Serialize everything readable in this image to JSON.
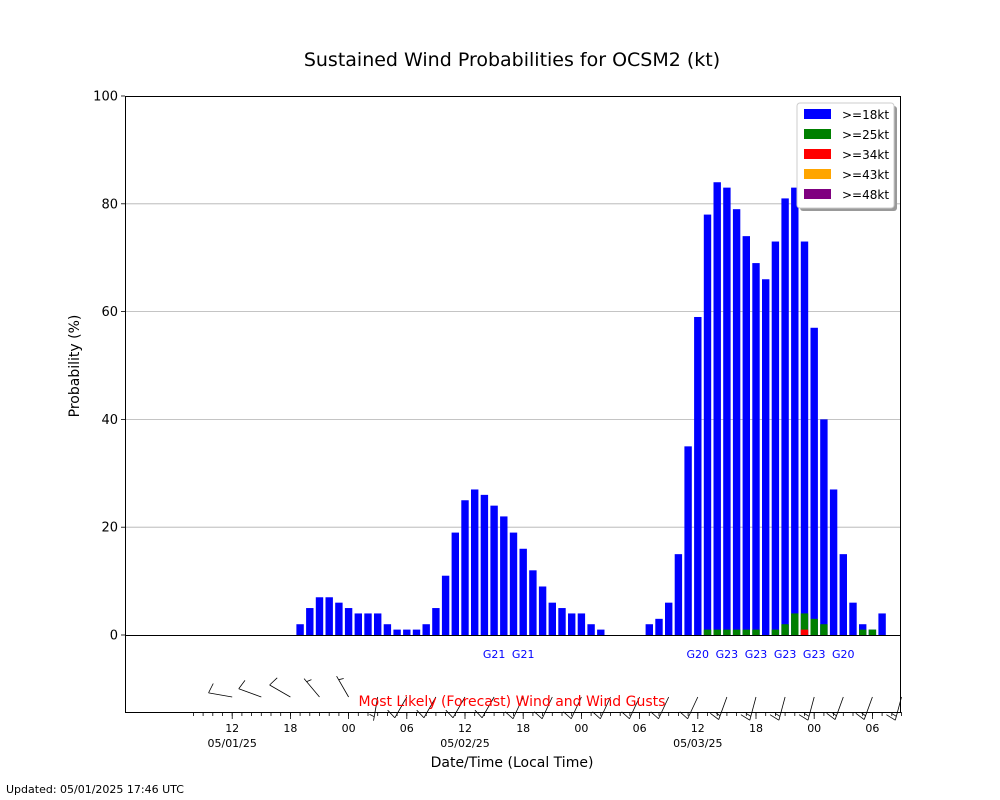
{
  "chart_data": {
    "type": "bar",
    "title": "Sustained Wind Probabilities for OCSM2 (kt)",
    "xlabel": "Date/Time (Local Time)",
    "ylabel": "Probability (%)",
    "ylim": [
      0,
      100
    ],
    "yticks": [
      0,
      20,
      40,
      60,
      80,
      100
    ],
    "grid": "horizontal",
    "legend_position": "top-right",
    "time_step_hours": 1,
    "first_slot": "05/01/25 06:00",
    "x_ticks": [
      {
        "label": "12",
        "date": "05/01/25",
        "slot": 6
      },
      {
        "label": "18",
        "date": "",
        "slot": 12
      },
      {
        "label": "00",
        "date": "",
        "slot": 18
      },
      {
        "label": "06",
        "date": "",
        "slot": 24
      },
      {
        "label": "12",
        "date": "05/02/25",
        "slot": 30
      },
      {
        "label": "18",
        "date": "",
        "slot": 36
      },
      {
        "label": "00",
        "date": "",
        "slot": 42
      },
      {
        "label": "06",
        "date": "",
        "slot": 48
      },
      {
        "label": "12",
        "date": "05/03/25",
        "slot": 54
      },
      {
        "label": "18",
        "date": "",
        "slot": 60
      },
      {
        "label": "00",
        "date": "",
        "slot": 66
      },
      {
        "label": "06",
        "date": "",
        "slot": 72
      }
    ],
    "minor_tick_slots": [
      2,
      3,
      4,
      5,
      6,
      7,
      8,
      9,
      10,
      11,
      12,
      13,
      14,
      15,
      16,
      17,
      18,
      19,
      20,
      21,
      22,
      23,
      24,
      25,
      26,
      27,
      28,
      29,
      30,
      31,
      32,
      33,
      34,
      35,
      36,
      37,
      38,
      39,
      40,
      41,
      42,
      43,
      44,
      45,
      46,
      47,
      48,
      49,
      50,
      51,
      52,
      53,
      54,
      55,
      56,
      57,
      58,
      59,
      60,
      61,
      62,
      63,
      64,
      65,
      66,
      67,
      68,
      69,
      70,
      71,
      72,
      73,
      74,
      75
    ],
    "series": [
      {
        "name": ">=18kt",
        "color": "#0000ff",
        "slots": [
          13,
          14,
          15,
          16,
          17,
          18,
          19,
          20,
          21,
          22,
          23,
          24,
          25,
          26,
          27,
          28,
          29,
          30,
          31,
          32,
          33,
          34,
          35,
          36,
          37,
          38,
          39,
          40,
          41,
          42,
          43,
          44,
          45,
          46,
          47,
          48,
          49,
          50,
          51,
          52,
          53,
          54,
          55,
          56,
          57,
          58,
          59,
          60,
          61,
          62,
          63,
          64,
          65,
          66,
          67,
          68,
          69,
          70,
          71,
          72,
          73,
          74,
          75
        ],
        "values": [
          2,
          5,
          7,
          7,
          6,
          5,
          4,
          4,
          4,
          2,
          1,
          1,
          1,
          2,
          5,
          11,
          19,
          25,
          27,
          26,
          24,
          22,
          19,
          16,
          12,
          9,
          6,
          5,
          4,
          4,
          2,
          1,
          0,
          0,
          0,
          0,
          2,
          3,
          6,
          15,
          35,
          59,
          78,
          84,
          83,
          79,
          74,
          69,
          66,
          73,
          81,
          83,
          73,
          57,
          40,
          27,
          15,
          6,
          2,
          1,
          4,
          0,
          0
        ]
      },
      {
        "name": ">=25kt",
        "color": "#008000",
        "slots": [
          55,
          56,
          57,
          58,
          59,
          60,
          61,
          62,
          63,
          64,
          65,
          66,
          67,
          68,
          69,
          70,
          71,
          72,
          73,
          74,
          75
        ],
        "values": [
          1,
          1,
          1,
          1,
          1,
          1,
          0,
          1,
          2,
          4,
          4,
          3,
          2,
          0,
          0,
          0,
          1,
          1,
          0,
          0,
          0
        ]
      },
      {
        "name": ">=34kt",
        "color": "#ff0000",
        "slots": [
          65
        ],
        "values": [
          1
        ]
      },
      {
        "name": ">=43kt",
        "color": "#ffa500",
        "slots": [],
        "values": []
      },
      {
        "name": ">=48kt",
        "color": "#800080",
        "slots": [],
        "values": []
      }
    ],
    "gusts": [
      {
        "slot": 33,
        "label": "G21"
      },
      {
        "slot": 36,
        "label": "G21"
      },
      {
        "slot": 54,
        "label": "G20"
      },
      {
        "slot": 57,
        "label": "G23"
      },
      {
        "slot": 60,
        "label": "G23"
      },
      {
        "slot": 63,
        "label": "G23"
      },
      {
        "slot": 66,
        "label": "G23"
      },
      {
        "slot": 69,
        "label": "G20"
      }
    ],
    "wind_barbs": [
      {
        "slot": 6,
        "direction_deg": 280,
        "speed_kt": 10
      },
      {
        "slot": 9,
        "direction_deg": 290,
        "speed_kt": 10
      },
      {
        "slot": 12,
        "direction_deg": 300,
        "speed_kt": 10
      },
      {
        "slot": 15,
        "direction_deg": 320,
        "speed_kt": 5
      },
      {
        "slot": 18,
        "direction_deg": 330,
        "speed_kt": 5
      },
      {
        "slot": 21,
        "direction_deg": 190,
        "speed_kt": 5
      },
      {
        "slot": 24,
        "direction_deg": 210,
        "speed_kt": 10
      },
      {
        "slot": 27,
        "direction_deg": 210,
        "speed_kt": 10
      },
      {
        "slot": 30,
        "direction_deg": 210,
        "speed_kt": 10
      },
      {
        "slot": 33,
        "direction_deg": 210,
        "speed_kt": 10
      },
      {
        "slot": 36,
        "direction_deg": 205,
        "speed_kt": 10
      },
      {
        "slot": 39,
        "direction_deg": 205,
        "speed_kt": 10
      },
      {
        "slot": 42,
        "direction_deg": 205,
        "speed_kt": 10
      },
      {
        "slot": 45,
        "direction_deg": 205,
        "speed_kt": 10
      },
      {
        "slot": 48,
        "direction_deg": 205,
        "speed_kt": 10
      },
      {
        "slot": 51,
        "direction_deg": 205,
        "speed_kt": 10
      },
      {
        "slot": 54,
        "direction_deg": 205,
        "speed_kt": 10
      },
      {
        "slot": 57,
        "direction_deg": 200,
        "speed_kt": 15
      },
      {
        "slot": 60,
        "direction_deg": 195,
        "speed_kt": 15
      },
      {
        "slot": 63,
        "direction_deg": 195,
        "speed_kt": 15
      },
      {
        "slot": 66,
        "direction_deg": 195,
        "speed_kt": 15
      },
      {
        "slot": 69,
        "direction_deg": 200,
        "speed_kt": 15
      },
      {
        "slot": 72,
        "direction_deg": 200,
        "speed_kt": 15
      },
      {
        "slot": 75,
        "direction_deg": 195,
        "speed_kt": 15
      }
    ],
    "barb_caption": "Most Likely (Forecast) Wind and Wind Gusts"
  },
  "updated_text": "Updated: 05/01/2025 17:46 UTC"
}
